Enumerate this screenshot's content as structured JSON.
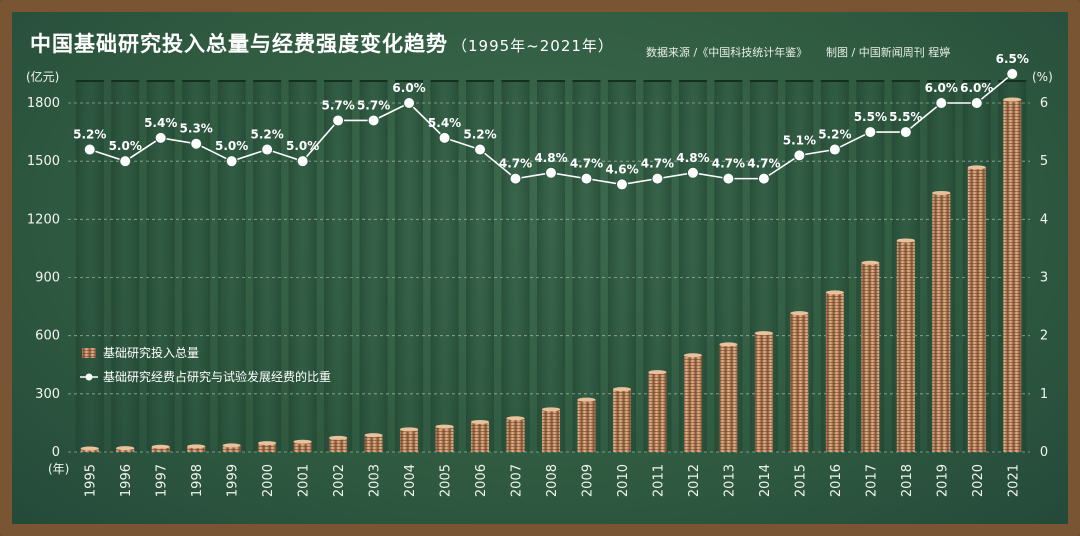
{
  "header": {
    "title": "中国基础研究投入总量与经费强度变化趋势",
    "subtitle": "（1995年~2021年）",
    "source": "数据来源 /《中国科技统计年鉴》",
    "credit": "制图 / 中国新闻周刊 程婷"
  },
  "axes": {
    "left_unit": "(亿元)",
    "right_unit": "(%)",
    "x_unit": "(年)"
  },
  "legend": {
    "bar_label": "基础研究投入总量",
    "line_label": "基础研究经费占研究与试验发展经费的比重"
  },
  "colors": {
    "board": "#2f5a40",
    "bar": "#c89a72",
    "line": "#ffffff",
    "text": "#ffffff"
  },
  "chart_data": {
    "type": "bar+line",
    "categories": [
      "1995",
      "1996",
      "1997",
      "1998",
      "1999",
      "2000",
      "2001",
      "2002",
      "2003",
      "2004",
      "2005",
      "2006",
      "2007",
      "2008",
      "2009",
      "2010",
      "2011",
      "2012",
      "2013",
      "2014",
      "2015",
      "2016",
      "2017",
      "2018",
      "2019",
      "2020",
      "2021"
    ],
    "series": [
      {
        "name": "基础研究投入总量",
        "type": "bar",
        "axis": "left",
        "values": [
          18,
          20,
          27,
          29,
          34,
          46,
          53,
          73,
          87,
          117,
          131,
          155,
          174,
          220,
          270,
          324,
          412,
          499,
          555,
          613,
          716,
          823,
          976,
          1091,
          1336,
          1468,
          1818
        ]
      },
      {
        "name": "基础研究经费占研究与试验发展经费的比重",
        "type": "line",
        "axis": "right",
        "values": [
          5.2,
          5.0,
          5.4,
          5.3,
          5.0,
          5.2,
          5.0,
          5.7,
          5.7,
          6.0,
          5.4,
          5.2,
          4.7,
          4.8,
          4.7,
          4.6,
          4.7,
          4.8,
          4.7,
          4.7,
          5.1,
          5.2,
          5.5,
          5.5,
          6.0,
          6.0,
          6.5
        ],
        "labels": [
          "5.2%",
          "5.0%",
          "5.4%",
          "5.3%",
          "5.0%",
          "5.2%",
          "5.0%",
          "5.7%",
          "5.7%",
          "6.0%",
          "5.4%",
          "5.2%",
          "4.7%",
          "4.8%",
          "4.7%",
          "4.6%",
          "4.7%",
          "4.8%",
          "4.7%",
          "4.7%",
          "5.1%",
          "5.2%",
          "5.5%",
          "5.5%",
          "6.0%",
          "6.0%",
          "6.5%"
        ]
      }
    ],
    "y_left": {
      "ticks": [
        "0",
        "300",
        "600",
        "900",
        "1200",
        "1500",
        "1800"
      ],
      "range": [
        0,
        1800
      ]
    },
    "y_right": {
      "ticks": [
        "0",
        "1",
        "2",
        "3",
        "4",
        "5",
        "6"
      ],
      "range": [
        0,
        6
      ]
    },
    "legend_position": "left-middle",
    "grid": true
  }
}
